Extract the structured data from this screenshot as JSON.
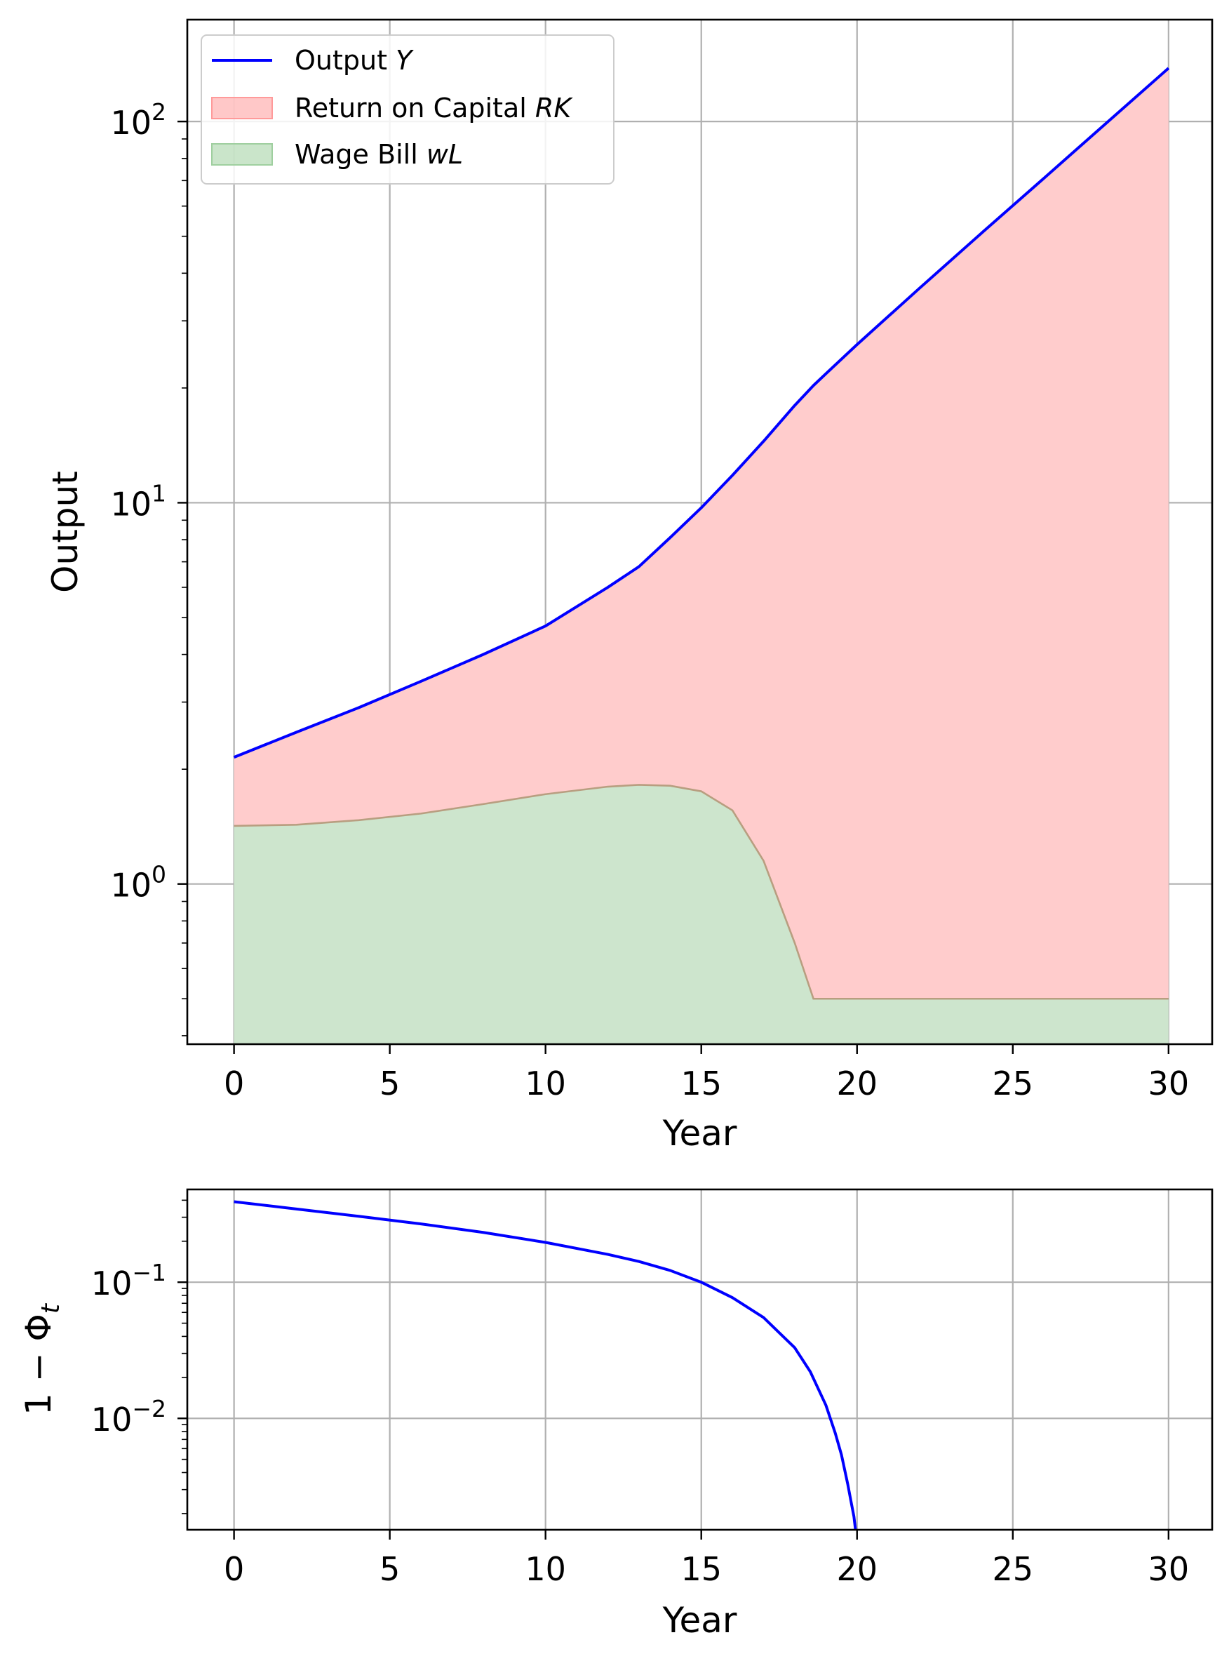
{
  "chart_data": [
    {
      "type": "area",
      "xlabel": "Year",
      "ylabel": "Output",
      "yscale": "log",
      "grid": true,
      "legend_position": "top-left",
      "xlim": [
        -1.5,
        31.4
      ],
      "ylim": [
        0.38,
        185
      ],
      "xticks": [
        0,
        5,
        10,
        15,
        20,
        25,
        30
      ],
      "yticks": [
        {
          "value": 1,
          "base": "10",
          "exp": "0"
        },
        {
          "value": 10,
          "base": "10",
          "exp": "1"
        },
        {
          "value": 100,
          "base": "10",
          "exp": "2"
        }
      ],
      "legend": [
        {
          "prefix": "Output ",
          "symbol": "Y",
          "kind": "line",
          "color": "#0000ff"
        },
        {
          "prefix": "Return on Capital ",
          "symbol": "RK",
          "kind": "fill",
          "color": "#ff9a9a"
        },
        {
          "prefix": "Wage Bill ",
          "symbol": "wL",
          "kind": "fill",
          "color": "#9fcf9f"
        }
      ],
      "colors": {
        "output": "#0000ff",
        "capital_fill": "#ffcccc",
        "wage_fill": "#cde5cd",
        "wage_edge": "#b89e80"
      },
      "x": [
        0,
        2,
        4,
        6,
        8,
        10,
        12,
        13,
        14,
        15,
        16,
        17,
        18,
        18.6,
        19,
        20,
        22,
        24,
        26,
        28,
        30
      ],
      "series": [
        {
          "name": "Output Y",
          "values": [
            2.15,
            2.5,
            2.9,
            3.4,
            4.0,
            4.75,
            6.0,
            6.8,
            8.1,
            9.7,
            11.8,
            14.5,
            18.0,
            20.3,
            21.8,
            26.0,
            36.5,
            51.0,
            71.0,
            99.0,
            138.0
          ]
        },
        {
          "name": "Wage Bill wL",
          "values": [
            1.42,
            1.43,
            1.47,
            1.53,
            1.62,
            1.72,
            1.8,
            1.82,
            1.81,
            1.75,
            1.56,
            1.15,
            0.7,
            0.5,
            0.5,
            0.5,
            0.5,
            0.5,
            0.5,
            0.5,
            0.5
          ]
        }
      ]
    },
    {
      "type": "line",
      "xlabel": "Year",
      "ylabel": "1 − Φt",
      "ylabel_main": "1 − Φ",
      "ylabel_sub": "t",
      "yscale": "log",
      "grid": true,
      "xlim": [
        -1.5,
        31.4
      ],
      "ylim": [
        0.00152,
        0.48
      ],
      "xticks": [
        0,
        5,
        10,
        15,
        20,
        25,
        30
      ],
      "yticks": [
        {
          "value": 0.01,
          "base": "10",
          "exp": "−2"
        },
        {
          "value": 0.1,
          "base": "10",
          "exp": "−1"
        }
      ],
      "colors": {
        "line": "#0000ff"
      },
      "x": [
        0,
        2,
        4,
        6,
        8,
        10,
        12,
        13,
        14,
        15,
        16,
        17,
        18,
        18.5,
        19,
        19.3,
        19.5,
        19.7,
        19.8,
        19.9,
        19.95
      ],
      "series": [
        {
          "name": "1 − Φt",
          "values": [
            0.39,
            0.345,
            0.305,
            0.268,
            0.232,
            0.196,
            0.16,
            0.142,
            0.122,
            0.1,
            0.077,
            0.055,
            0.033,
            0.022,
            0.0125,
            0.0078,
            0.0054,
            0.0033,
            0.0025,
            0.0019,
            0.0015
          ]
        }
      ]
    }
  ]
}
